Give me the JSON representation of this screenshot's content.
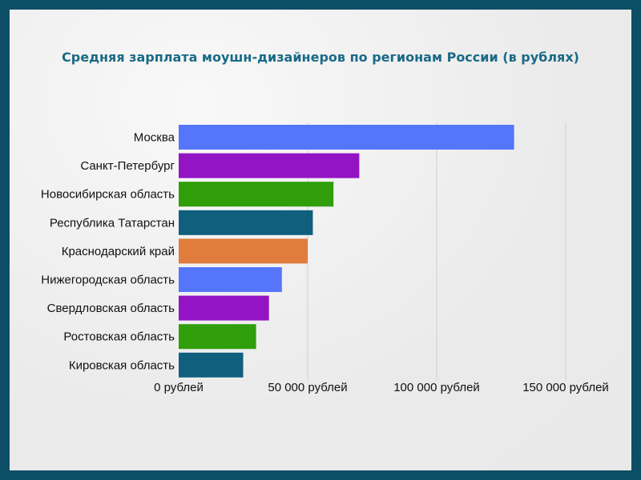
{
  "chart_data": {
    "type": "bar",
    "orientation": "horizontal",
    "title": "Средняя зарплата моушн-дизайнеров по регионам России (в рублях)",
    "categories": [
      "Москва",
      "Санкт-Петербург",
      "Новосибирская область",
      "Республика Татарстан",
      "Краснодарский край",
      "Нижегородская область",
      "Свердловская область",
      "Ростовская область",
      "Кировская область"
    ],
    "values": [
      130000,
      70000,
      60000,
      52000,
      50000,
      40000,
      35000,
      30000,
      25000
    ],
    "colors": [
      "#5576fb",
      "#9214c5",
      "#2f9e0a",
      "#0f5f7d",
      "#e07c3c",
      "#5576fb",
      "#9214c5",
      "#2f9e0a",
      "#0f5f7d"
    ],
    "xlim": [
      0,
      150000
    ],
    "xticks": [
      0,
      50000,
      100000,
      150000
    ],
    "xtick_labels": [
      "0 рублей",
      "50 000 рублей",
      "100 000 рублей",
      "150 000 рублей"
    ],
    "grid": true
  }
}
